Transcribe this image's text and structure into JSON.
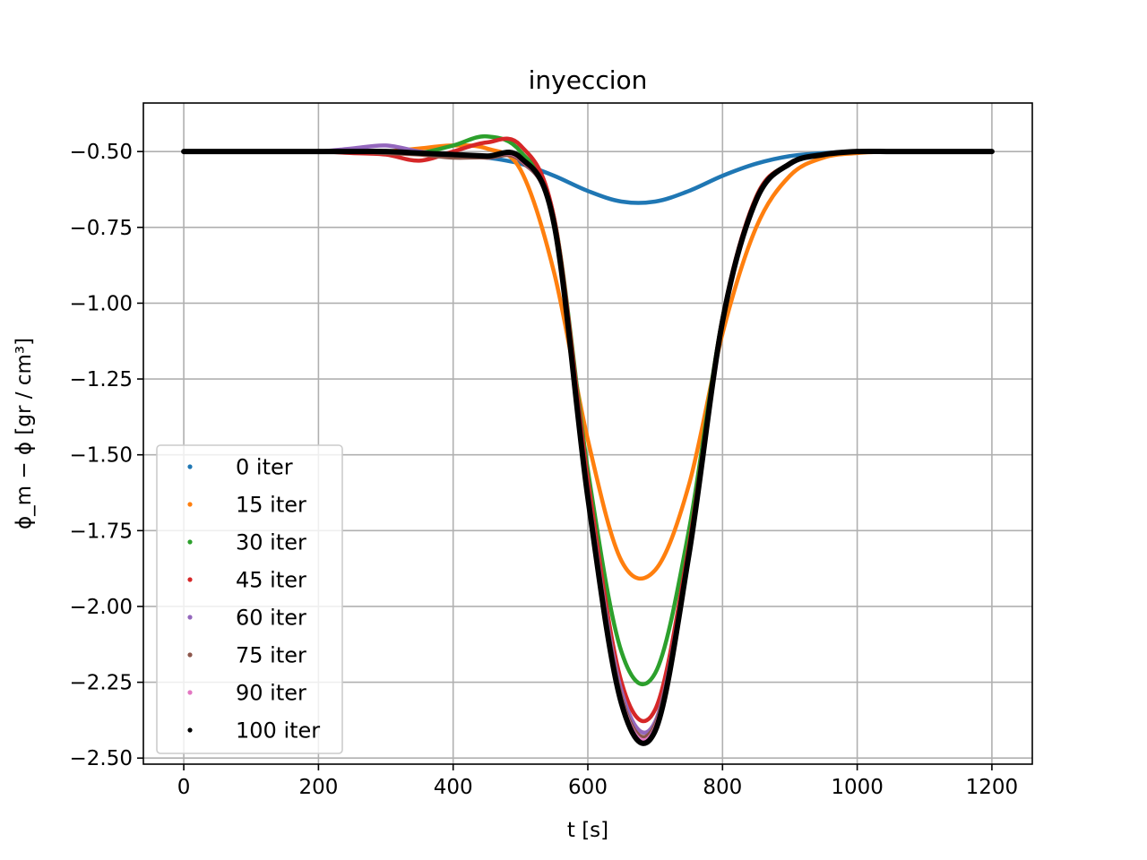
{
  "chart_data": {
    "type": "line",
    "title": "inyeccion",
    "xlabel": "t [s]",
    "ylabel": "ϕ_m − ϕ [gr / cm³]",
    "xlim": [
      -60,
      1260
    ],
    "ylim": [
      -2.52,
      -0.34
    ],
    "xticks": [
      0,
      200,
      400,
      600,
      800,
      1000,
      1200
    ],
    "xtick_labels": [
      "0",
      "200",
      "400",
      "600",
      "800",
      "1000",
      "1200"
    ],
    "yticks": [
      -0.5,
      -0.75,
      -1.0,
      -1.25,
      -1.5,
      -1.75,
      -2.0,
      -2.25,
      -2.5
    ],
    "ytick_labels": [
      "−0.50",
      "−0.75",
      "−1.00",
      "−1.25",
      "−1.50",
      "−1.75",
      "−2.00",
      "−2.25",
      "−2.50"
    ],
    "grid": true,
    "legend_position": "lower-left",
    "x": [
      0,
      50,
      100,
      150,
      200,
      250,
      300,
      350,
      400,
      450,
      500,
      550,
      600,
      650,
      700,
      750,
      800,
      850,
      900,
      950,
      1000,
      1050,
      1100,
      1150,
      1200
    ],
    "series": [
      {
        "name": "0 iter",
        "color": "#1f77b4",
        "values": [
          -0.5,
          -0.5,
          -0.5,
          -0.5,
          -0.5,
          -0.5,
          -0.5,
          -0.505,
          -0.51,
          -0.52,
          -0.54,
          -0.58,
          -0.63,
          -0.665,
          -0.665,
          -0.63,
          -0.58,
          -0.54,
          -0.515,
          -0.505,
          -0.5,
          -0.5,
          -0.5,
          -0.5,
          -0.5
        ]
      },
      {
        "name": "15 iter",
        "color": "#ff7f0e",
        "values": [
          -0.5,
          -0.5,
          -0.5,
          -0.5,
          -0.5,
          -0.5,
          -0.5,
          -0.49,
          -0.48,
          -0.49,
          -0.56,
          -0.9,
          -1.45,
          -1.85,
          -1.88,
          -1.6,
          -1.1,
          -0.75,
          -0.58,
          -0.52,
          -0.505,
          -0.5,
          -0.5,
          -0.5,
          -0.5
        ]
      },
      {
        "name": "30 iter",
        "color": "#2ca02c",
        "values": [
          -0.5,
          -0.5,
          -0.5,
          -0.5,
          -0.5,
          -0.5,
          -0.505,
          -0.505,
          -0.48,
          -0.45,
          -0.5,
          -0.72,
          -1.55,
          -2.15,
          -2.22,
          -1.75,
          -1.05,
          -0.65,
          -0.54,
          -0.51,
          -0.5,
          -0.5,
          -0.5,
          -0.5,
          -0.5
        ]
      },
      {
        "name": "45 iter",
        "color": "#d62728",
        "values": [
          -0.5,
          -0.5,
          -0.5,
          -0.5,
          -0.5,
          -0.505,
          -0.51,
          -0.53,
          -0.5,
          -0.47,
          -0.48,
          -0.72,
          -1.58,
          -2.25,
          -2.34,
          -1.8,
          -1.05,
          -0.65,
          -0.54,
          -0.51,
          -0.5,
          -0.5,
          -0.5,
          -0.5,
          -0.5
        ]
      },
      {
        "name": "60 iter",
        "color": "#9467bd",
        "values": [
          -0.5,
          -0.5,
          -0.5,
          -0.5,
          -0.5,
          -0.49,
          -0.48,
          -0.5,
          -0.515,
          -0.52,
          -0.53,
          -0.74,
          -1.62,
          -2.28,
          -2.38,
          -1.82,
          -1.06,
          -0.66,
          -0.54,
          -0.51,
          -0.5,
          -0.5,
          -0.5,
          -0.5,
          -0.5
        ]
      },
      {
        "name": "75 iter",
        "color": "#8c564b",
        "values": [
          -0.5,
          -0.5,
          -0.5,
          -0.5,
          -0.5,
          -0.5,
          -0.505,
          -0.51,
          -0.52,
          -0.52,
          -0.53,
          -0.74,
          -1.62,
          -2.3,
          -2.39,
          -1.82,
          -1.06,
          -0.66,
          -0.54,
          -0.51,
          -0.5,
          -0.5,
          -0.5,
          -0.5,
          -0.5
        ]
      },
      {
        "name": "90 iter",
        "color": "#e377c2",
        "values": [
          -0.5,
          -0.5,
          -0.5,
          -0.5,
          -0.5,
          -0.5,
          -0.5,
          -0.505,
          -0.51,
          -0.515,
          -0.525,
          -0.74,
          -1.63,
          -2.31,
          -2.4,
          -1.82,
          -1.06,
          -0.66,
          -0.54,
          -0.51,
          -0.5,
          -0.5,
          -0.5,
          -0.5,
          -0.5
        ]
      },
      {
        "name": "100 iter",
        "color": "#000000",
        "values": [
          -0.5,
          -0.5,
          -0.5,
          -0.5,
          -0.5,
          -0.5,
          -0.5,
          -0.505,
          -0.51,
          -0.515,
          -0.52,
          -0.74,
          -1.64,
          -2.32,
          -2.41,
          -1.83,
          -1.06,
          -0.66,
          -0.54,
          -0.51,
          -0.5,
          -0.5,
          -0.5,
          -0.5,
          -0.5
        ]
      }
    ]
  }
}
